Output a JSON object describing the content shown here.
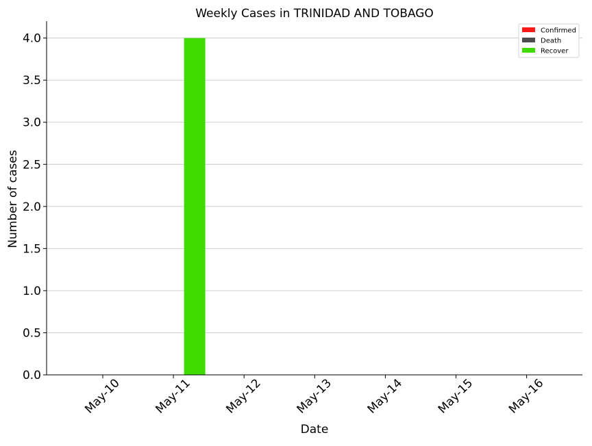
{
  "chart_data": {
    "type": "bar",
    "title": "Weekly Cases in TRINIDAD AND TOBAGO",
    "xlabel": "Date",
    "ylabel": "Number of cases",
    "categories": [
      "May-10",
      "May-11",
      "May-12",
      "May-13",
      "May-14",
      "May-15",
      "May-16"
    ],
    "series": [
      {
        "name": "Confirmed",
        "color": "#ff1a1a",
        "values": [
          0,
          0,
          0,
          0,
          0,
          0,
          0
        ]
      },
      {
        "name": "Death",
        "color": "#4d4d4d",
        "values": [
          0,
          0,
          0,
          0,
          0,
          0,
          0
        ]
      },
      {
        "name": "Recover",
        "color": "#40dc00",
        "values": [
          0,
          4,
          0,
          0,
          0,
          0,
          0
        ]
      }
    ],
    "ylim": [
      0,
      4.2
    ],
    "yticks": [
      "0.0",
      "0.5",
      "1.0",
      "1.5",
      "2.0",
      "2.5",
      "3.0",
      "3.5",
      "4.0"
    ],
    "grid": "horizontal",
    "legend_position": "top-right"
  }
}
